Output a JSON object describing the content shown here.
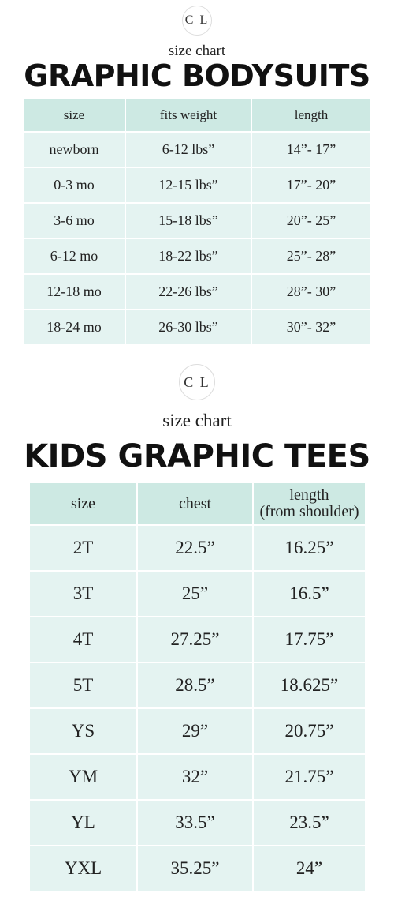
{
  "sections": [
    {
      "logo": "C L",
      "subtitle": "size chart",
      "title": "GRAPHIC BODYSUITS",
      "table": {
        "header": [
          "size",
          "fits weight",
          "length"
        ],
        "rows": [
          [
            "newborn",
            "6-12 lbs”",
            "14”- 17”"
          ],
          [
            "0-3 mo",
            "12-15 lbs”",
            "17”- 20”"
          ],
          [
            "3-6 mo",
            "15-18 lbs”",
            "20”- 25”"
          ],
          [
            "6-12 mo",
            "18-22 lbs”",
            "25”- 28”"
          ],
          [
            "12-18 mo",
            "22-26 lbs”",
            "28”- 30”"
          ],
          [
            "18-24 mo",
            "26-30 lbs”",
            "30”- 32”"
          ]
        ]
      }
    },
    {
      "logo": "C L",
      "subtitle": "size chart",
      "title": "KIDS GRAPHIC TEES",
      "table": {
        "header": [
          "size",
          "chest",
          "length\n(from shoulder)"
        ],
        "rows": [
          [
            "2T",
            "22.5”",
            "16.25”"
          ],
          [
            "3T",
            "25”",
            "16.5”"
          ],
          [
            "4T",
            "27.25”",
            "17.75”"
          ],
          [
            "5T",
            "28.5”",
            "18.625”"
          ],
          [
            "YS",
            "29”",
            "20.75”"
          ],
          [
            "YM",
            "32”",
            "21.75”"
          ],
          [
            "YL",
            "33.5”",
            "23.5”"
          ],
          [
            "YXL",
            "35.25”",
            "24”"
          ]
        ]
      }
    }
  ]
}
